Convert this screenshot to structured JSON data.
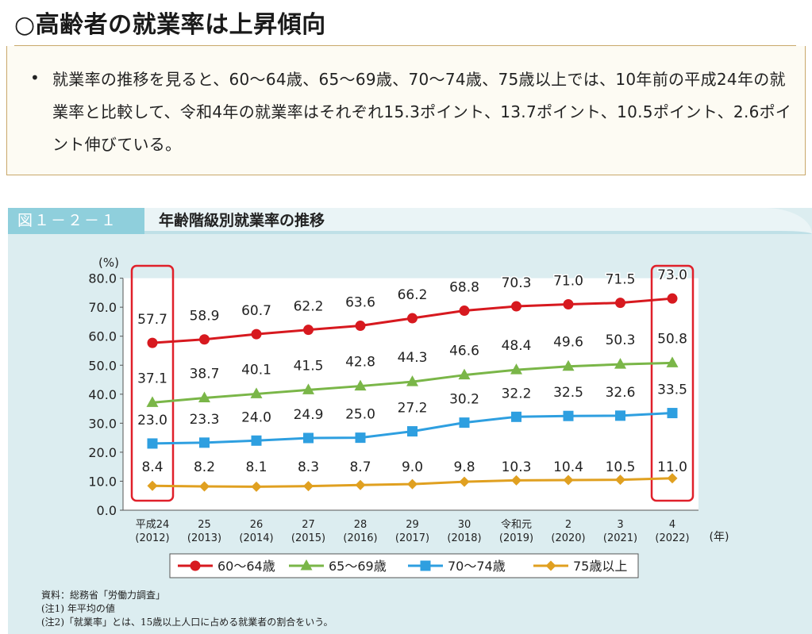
{
  "heading": "○高齢者の就業率は上昇傾向",
  "summary": {
    "bullet": "•",
    "text": "就業率の推移を見ると、60～64歳、65～69歳、70～74歳、75歳以上では、10年前の平成24年の就業率と比較して、令和4年の就業率はそれぞれ15.3ポイント、13.7ポイント、10.5ポイント、2.6ポイント伸びている。"
  },
  "figure": {
    "number": "図１－２－１",
    "title": "年齢階級別就業率の推移"
  },
  "chart_data": {
    "type": "line",
    "title": "年齢階級別就業率の推移",
    "ylabel": "(%)",
    "xunit": "(年)",
    "ylim": [
      0,
      80
    ],
    "yticks": [
      "0.0",
      "10.0",
      "20.0",
      "30.0",
      "40.0",
      "50.0",
      "60.0",
      "70.0",
      "80.0"
    ],
    "categories": [
      {
        "era": "平成24",
        "year": "(2012)"
      },
      {
        "era": "25",
        "year": "(2013)"
      },
      {
        "era": "26",
        "year": "(2014)"
      },
      {
        "era": "27",
        "year": "(2015)"
      },
      {
        "era": "28",
        "year": "(2016)"
      },
      {
        "era": "29",
        "year": "(2017)"
      },
      {
        "era": "30",
        "year": "(2018)"
      },
      {
        "era": "令和元",
        "year": "(2019)"
      },
      {
        "era": "2",
        "year": "(2020)"
      },
      {
        "era": "3",
        "year": "(2021)"
      },
      {
        "era": "4",
        "year": "(2022)"
      }
    ],
    "series": [
      {
        "name": "60～64歳",
        "color": "#d7191f",
        "marker": "circle",
        "values": [
          57.7,
          58.9,
          60.7,
          62.2,
          63.6,
          66.2,
          68.8,
          70.3,
          71.0,
          71.5,
          73.0
        ],
        "labels": [
          "57.7",
          "58.9",
          "60.7",
          "62.2",
          "63.6",
          "66.2",
          "68.8",
          "70.3",
          "71.0",
          "71.5",
          "73.0"
        ]
      },
      {
        "name": "65～69歳",
        "color": "#7ab648",
        "marker": "triangle",
        "values": [
          37.1,
          38.7,
          40.1,
          41.5,
          42.8,
          44.3,
          46.6,
          48.4,
          49.6,
          50.3,
          50.8
        ],
        "labels": [
          "37.1",
          "38.7",
          "40.1",
          "41.5",
          "42.8",
          "44.3",
          "46.6",
          "48.4",
          "49.6",
          "50.3",
          "50.8"
        ]
      },
      {
        "name": "70～74歳",
        "color": "#2e9fe0",
        "marker": "square",
        "values": [
          23.0,
          23.3,
          24.0,
          24.9,
          25.0,
          27.2,
          30.2,
          32.2,
          32.5,
          32.6,
          33.5
        ],
        "labels": [
          "23.0",
          "23.3",
          "24.0",
          "24.9",
          "25.0",
          "27.2",
          "30.2",
          "32.2",
          "32.5",
          "32.6",
          "33.5"
        ]
      },
      {
        "name": "75歳以上",
        "color": "#e0a020",
        "marker": "diamond",
        "values": [
          8.4,
          8.2,
          8.1,
          8.3,
          8.7,
          9.0,
          9.8,
          10.3,
          10.4,
          10.5,
          11.0
        ],
        "labels": [
          "8.4",
          "8.2",
          "8.1",
          "8.3",
          "8.7",
          "9.0",
          "9.8",
          "10.3",
          "10.4",
          "10.5",
          "11.0"
        ]
      }
    ],
    "highlight_categories": [
      0,
      10
    ],
    "highlight_color": "#e0202a",
    "legend_position": "bottom",
    "grid": false
  },
  "notes": [
    "資料：総務省「労働力調査」",
    "(注1) 年平均の値",
    "(注2)「就業率」とは、15歳以上人口に占める就業者の割合をいう。"
  ]
}
